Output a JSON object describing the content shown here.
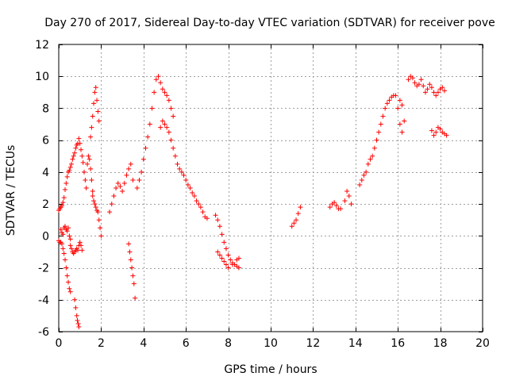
{
  "chart_data": {
    "type": "scatter",
    "title": "Day 270 of 2017, Sidereal Day-to-day VTEC variation (SDTVAR) for receiver pove",
    "xlabel": "GPS time / hours",
    "ylabel": "SDTVAR / TECUs",
    "xlim": [
      0,
      20
    ],
    "ylim": [
      -6,
      12
    ],
    "xticks": [
      0,
      2,
      4,
      6,
      8,
      10,
      12,
      14,
      16,
      18,
      20
    ],
    "yticks": [
      -6,
      -4,
      -2,
      0,
      2,
      4,
      6,
      8,
      10,
      12
    ],
    "xtick_labels": [
      "0",
      "2",
      "4",
      "6",
      "8",
      "10",
      "12",
      "14",
      "16",
      "18",
      "20"
    ],
    "ytick_labels": [
      "-6",
      "-4",
      "-2",
      "0",
      "2",
      "4",
      "6",
      "8",
      "10",
      "12"
    ],
    "grid": true,
    "legend": "none",
    "marker": "plus",
    "series": [
      {
        "name": "SDTVAR",
        "color": "#ff0000",
        "points": [
          [
            0.0,
            -0.3
          ],
          [
            0.05,
            -0.4
          ],
          [
            0.1,
            -0.4
          ],
          [
            0.15,
            -0.5
          ],
          [
            0.2,
            -0.8
          ],
          [
            0.25,
            -1.1
          ],
          [
            0.3,
            -1.5
          ],
          [
            0.35,
            -2.0
          ],
          [
            0.4,
            -2.5
          ],
          [
            0.45,
            -2.9
          ],
          [
            0.5,
            -3.3
          ],
          [
            0.55,
            -3.5
          ],
          [
            0.0,
            1.6
          ],
          [
            0.05,
            1.7
          ],
          [
            0.1,
            1.8
          ],
          [
            0.15,
            1.9
          ],
          [
            0.2,
            2.1
          ],
          [
            0.25,
            2.4
          ],
          [
            0.3,
            2.9
          ],
          [
            0.35,
            3.3
          ],
          [
            0.4,
            3.7
          ],
          [
            0.45,
            4.0
          ],
          [
            0.5,
            4.1
          ],
          [
            0.55,
            4.3
          ],
          [
            0.1,
            0.4
          ],
          [
            0.15,
            0.2
          ],
          [
            0.2,
            0.1
          ],
          [
            0.25,
            0.5
          ],
          [
            0.3,
            0.6
          ],
          [
            0.35,
            0.4
          ],
          [
            0.4,
            0.3
          ],
          [
            0.45,
            0.5
          ],
          [
            0.5,
            0.0
          ],
          [
            0.55,
            -0.2
          ],
          [
            0.55,
            -0.6
          ],
          [
            0.6,
            -0.8
          ],
          [
            0.65,
            -1.0
          ],
          [
            0.7,
            -1.1
          ],
          [
            0.75,
            -1.0
          ],
          [
            0.8,
            -0.9
          ],
          [
            0.85,
            -0.8
          ],
          [
            0.9,
            -0.9
          ],
          [
            0.95,
            -0.6
          ],
          [
            1.0,
            -0.4
          ],
          [
            1.05,
            -0.6
          ],
          [
            1.1,
            -0.9
          ],
          [
            0.6,
            4.5
          ],
          [
            0.65,
            4.8
          ],
          [
            0.7,
            5.0
          ],
          [
            0.75,
            5.2
          ],
          [
            0.8,
            5.5
          ],
          [
            0.85,
            5.7
          ],
          [
            0.9,
            5.8
          ],
          [
            0.95,
            6.1
          ],
          [
            1.0,
            5.8
          ],
          [
            1.05,
            5.4
          ],
          [
            1.1,
            5.0
          ],
          [
            0.75,
            -4.0
          ],
          [
            0.8,
            -4.5
          ],
          [
            0.85,
            -5.0
          ],
          [
            0.88,
            -5.3
          ],
          [
            0.92,
            -5.5
          ],
          [
            0.95,
            -5.7
          ],
          [
            1.15,
            4.6
          ],
          [
            1.2,
            4.0
          ],
          [
            1.25,
            3.5
          ],
          [
            1.3,
            3.0
          ],
          [
            1.35,
            4.5
          ],
          [
            1.4,
            5.0
          ],
          [
            1.45,
            4.8
          ],
          [
            1.5,
            4.2
          ],
          [
            1.55,
            3.5
          ],
          [
            1.6,
            2.8
          ],
          [
            1.5,
            6.2
          ],
          [
            1.55,
            6.8
          ],
          [
            1.6,
            7.5
          ],
          [
            1.65,
            8.3
          ],
          [
            1.7,
            9.0
          ],
          [
            1.75,
            9.3
          ],
          [
            1.8,
            8.5
          ],
          [
            1.85,
            7.8
          ],
          [
            1.9,
            7.2
          ],
          [
            1.6,
            2.5
          ],
          [
            1.65,
            2.2
          ],
          [
            1.7,
            2.0
          ],
          [
            1.75,
            1.8
          ],
          [
            1.8,
            1.6
          ],
          [
            1.85,
            1.5
          ],
          [
            1.9,
            1.0
          ],
          [
            1.95,
            0.5
          ],
          [
            2.0,
            0.0
          ],
          [
            2.4,
            1.5
          ],
          [
            2.5,
            2.0
          ],
          [
            2.6,
            2.5
          ],
          [
            2.7,
            3.0
          ],
          [
            2.8,
            3.3
          ],
          [
            2.9,
            3.1
          ],
          [
            3.0,
            2.8
          ],
          [
            3.1,
            3.3
          ],
          [
            3.2,
            3.8
          ],
          [
            3.3,
            4.2
          ],
          [
            3.4,
            4.5
          ],
          [
            3.5,
            3.5
          ],
          [
            3.3,
            -0.5
          ],
          [
            3.35,
            -1.0
          ],
          [
            3.4,
            -1.5
          ],
          [
            3.45,
            -2.0
          ],
          [
            3.5,
            -2.5
          ],
          [
            3.55,
            -3.0
          ],
          [
            3.6,
            -3.9
          ],
          [
            3.7,
            3.0
          ],
          [
            3.8,
            3.5
          ],
          [
            3.9,
            4.0
          ],
          [
            4.0,
            4.8
          ],
          [
            4.1,
            5.5
          ],
          [
            4.2,
            6.2
          ],
          [
            4.3,
            7.0
          ],
          [
            4.4,
            8.0
          ],
          [
            4.5,
            9.0
          ],
          [
            4.6,
            9.8
          ],
          [
            4.7,
            10.0
          ],
          [
            4.8,
            9.6
          ],
          [
            4.9,
            9.2
          ],
          [
            5.0,
            9.0
          ],
          [
            5.1,
            8.8
          ],
          [
            5.2,
            8.5
          ],
          [
            5.3,
            8.0
          ],
          [
            5.4,
            7.5
          ],
          [
            4.8,
            6.8
          ],
          [
            4.9,
            7.2
          ],
          [
            5.0,
            7.0
          ],
          [
            5.1,
            6.8
          ],
          [
            5.2,
            6.5
          ],
          [
            5.3,
            6.0
          ],
          [
            5.4,
            5.5
          ],
          [
            5.5,
            5.0
          ],
          [
            5.6,
            4.5
          ],
          [
            5.7,
            4.2
          ],
          [
            5.8,
            4.0
          ],
          [
            5.9,
            3.8
          ],
          [
            6.0,
            3.5
          ],
          [
            6.1,
            3.2
          ],
          [
            6.2,
            3.0
          ],
          [
            6.3,
            2.7
          ],
          [
            6.4,
            2.5
          ],
          [
            6.5,
            2.2
          ],
          [
            6.6,
            2.0
          ],
          [
            6.7,
            1.8
          ],
          [
            6.8,
            1.5
          ],
          [
            6.9,
            1.2
          ],
          [
            7.0,
            1.1
          ],
          [
            7.4,
            1.3
          ],
          [
            7.5,
            1.0
          ],
          [
            7.6,
            0.6
          ],
          [
            7.7,
            0.1
          ],
          [
            7.8,
            -0.4
          ],
          [
            7.9,
            -0.8
          ],
          [
            8.0,
            -1.2
          ],
          [
            8.1,
            -1.5
          ],
          [
            8.2,
            -1.7
          ],
          [
            8.3,
            -1.8
          ],
          [
            8.4,
            -1.9
          ],
          [
            8.5,
            -2.0
          ],
          [
            7.5,
            -1.0
          ],
          [
            7.6,
            -1.2
          ],
          [
            7.7,
            -1.4
          ],
          [
            7.8,
            -1.6
          ],
          [
            7.9,
            -1.8
          ],
          [
            8.0,
            -2.0
          ],
          [
            8.2,
            -1.8
          ],
          [
            8.4,
            -1.5
          ],
          [
            8.5,
            -1.4
          ],
          [
            11.0,
            0.6
          ],
          [
            11.1,
            0.8
          ],
          [
            11.2,
            1.0
          ],
          [
            11.3,
            1.4
          ],
          [
            11.4,
            1.8
          ],
          [
            12.8,
            1.8
          ],
          [
            12.9,
            2.0
          ],
          [
            13.0,
            2.1
          ],
          [
            13.1,
            1.9
          ],
          [
            13.2,
            1.7
          ],
          [
            13.3,
            1.7
          ],
          [
            13.5,
            2.2
          ],
          [
            13.6,
            2.8
          ],
          [
            13.7,
            2.5
          ],
          [
            13.8,
            2.0
          ],
          [
            14.2,
            3.2
          ],
          [
            14.3,
            3.5
          ],
          [
            14.4,
            3.8
          ],
          [
            14.5,
            4.0
          ],
          [
            14.6,
            4.5
          ],
          [
            14.7,
            4.8
          ],
          [
            14.8,
            5.0
          ],
          [
            14.9,
            5.5
          ],
          [
            15.0,
            6.0
          ],
          [
            15.1,
            6.5
          ],
          [
            15.2,
            7.0
          ],
          [
            15.3,
            7.5
          ],
          [
            15.4,
            8.0
          ],
          [
            15.5,
            8.3
          ],
          [
            15.6,
            8.5
          ],
          [
            15.7,
            8.7
          ],
          [
            15.8,
            8.8
          ],
          [
            15.9,
            8.8
          ],
          [
            16.0,
            8.0
          ],
          [
            16.1,
            8.5
          ],
          [
            16.2,
            8.2
          ],
          [
            16.1,
            7.0
          ],
          [
            16.2,
            6.5
          ],
          [
            16.3,
            7.2
          ],
          [
            16.5,
            9.8
          ],
          [
            16.6,
            10.0
          ],
          [
            16.7,
            9.9
          ],
          [
            16.8,
            9.6
          ],
          [
            16.9,
            9.4
          ],
          [
            17.0,
            9.5
          ],
          [
            17.1,
            9.8
          ],
          [
            17.2,
            9.4
          ],
          [
            17.3,
            9.0
          ],
          [
            17.4,
            9.2
          ],
          [
            17.5,
            9.5
          ],
          [
            17.6,
            9.3
          ],
          [
            17.7,
            9.0
          ],
          [
            17.8,
            8.8
          ],
          [
            17.9,
            9.0
          ],
          [
            18.0,
            9.2
          ],
          [
            18.1,
            9.3
          ],
          [
            18.2,
            9.1
          ],
          [
            17.6,
            6.6
          ],
          [
            17.7,
            6.3
          ],
          [
            17.8,
            6.5
          ],
          [
            17.9,
            6.8
          ],
          [
            18.0,
            6.7
          ],
          [
            18.1,
            6.5
          ],
          [
            18.2,
            6.4
          ],
          [
            18.3,
            6.3
          ]
        ]
      }
    ]
  }
}
